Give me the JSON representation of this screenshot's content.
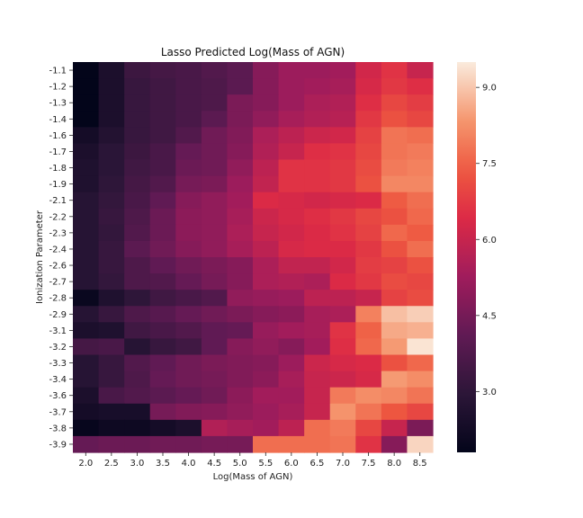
{
  "chart_data": {
    "type": "heatmap",
    "title": "Lasso Predicted Log(Mass of AGN)",
    "xlabel": "Log(Mass of AGN)",
    "ylabel": "Ionization Parameter",
    "x_categories": [
      "2.0",
      "2.5",
      "3.0",
      "3.5",
      "4.0",
      "4.5",
      "5.0",
      "5.5",
      "6.0",
      "6.5",
      "7.0",
      "7.5",
      "8.0",
      "8.5"
    ],
    "y_categories": [
      "-1.1",
      "-1.2",
      "-1.3",
      "-1.4",
      "-1.6",
      "-1.7",
      "-1.8",
      "-1.9",
      "-2.1",
      "-2.2",
      "-2.3",
      "-2.4",
      "-2.6",
      "-2.7",
      "-2.8",
      "-2.9",
      "-3.1",
      "-3.2",
      "-3.3",
      "-3.4",
      "-3.6",
      "-3.7",
      "-3.8",
      "-3.9"
    ],
    "values": [
      [
        1.8,
        2.5,
        3.3,
        3.5,
        3.6,
        3.8,
        4.0,
        4.8,
        5.2,
        5.2,
        5.3,
        6.2,
        6.6,
        6.0
      ],
      [
        1.8,
        2.5,
        3.2,
        3.4,
        3.6,
        3.7,
        4.0,
        4.8,
        5.2,
        5.3,
        5.4,
        6.3,
        6.7,
        6.5
      ],
      [
        1.8,
        2.5,
        3.2,
        3.4,
        3.6,
        3.7,
        4.6,
        4.8,
        5.2,
        5.5,
        5.6,
        6.5,
        7.0,
        6.8
      ],
      [
        1.8,
        2.5,
        3.2,
        3.4,
        3.6,
        4.0,
        4.6,
        5.0,
        5.4,
        5.6,
        5.7,
        6.7,
        7.2,
        7.0
      ],
      [
        2.3,
        2.7,
        3.2,
        3.4,
        3.8,
        4.4,
        4.7,
        5.5,
        5.8,
        6.1,
        6.2,
        6.9,
        7.8,
        7.7
      ],
      [
        2.5,
        2.9,
        3.3,
        3.6,
        4.2,
        4.4,
        4.8,
        5.6,
        6.0,
        6.5,
        6.6,
        7.0,
        7.8,
        7.9
      ],
      [
        2.6,
        2.9,
        3.4,
        3.6,
        4.3,
        4.4,
        5.0,
        5.8,
        6.6,
        6.6,
        6.7,
        7.1,
        7.9,
        8.0
      ],
      [
        2.6,
        3.0,
        3.5,
        3.8,
        4.5,
        4.6,
        5.2,
        5.9,
        6.6,
        6.6,
        6.7,
        7.2,
        8.1,
        8.1
      ],
      [
        2.8,
        3.1,
        3.6,
        4.1,
        4.8,
        5.0,
        5.3,
        6.4,
        6.3,
        6.2,
        6.3,
        6.4,
        7.4,
        7.7
      ],
      [
        2.8,
        3.2,
        3.7,
        4.3,
        4.9,
        5.0,
        5.4,
        6.1,
        6.3,
        6.5,
        6.7,
        7.0,
        7.2,
        7.6
      ],
      [
        2.8,
        3.1,
        3.8,
        4.3,
        4.9,
        5.0,
        5.5,
        6.0,
        6.2,
        6.4,
        6.6,
        6.9,
        7.6,
        7.4
      ],
      [
        2.8,
        3.2,
        4.0,
        4.4,
        4.8,
        5.0,
        5.4,
        5.8,
        6.3,
        6.4,
        6.4,
        6.7,
        7.2,
        7.7
      ],
      [
        2.8,
        3.2,
        3.7,
        4.1,
        4.4,
        4.6,
        4.8,
        5.5,
        5.9,
        5.9,
        6.2,
        6.8,
        6.9,
        7.2
      ],
      [
        2.8,
        3.1,
        3.7,
        3.8,
        4.2,
        4.5,
        4.8,
        5.5,
        5.6,
        5.5,
        6.4,
        6.7,
        7.1,
        7.0
      ],
      [
        2.0,
        2.6,
        3.0,
        3.4,
        3.6,
        3.8,
        5.0,
        5.1,
        5.2,
        5.8,
        5.8,
        6.0,
        6.9,
        7.1
      ],
      [
        2.8,
        3.2,
        3.7,
        3.9,
        4.2,
        4.4,
        4.6,
        4.8,
        4.9,
        5.4,
        5.5,
        8.0,
        8.9,
        9.1
      ],
      [
        2.5,
        2.6,
        3.4,
        3.6,
        3.8,
        4.1,
        4.2,
        5.1,
        5.3,
        5.4,
        6.6,
        7.5,
        8.6,
        8.7
      ],
      [
        3.5,
        3.6,
        2.8,
        3.2,
        3.4,
        4.1,
        4.8,
        5.0,
        4.8,
        5.3,
        6.5,
        7.6,
        8.4,
        9.4
      ],
      [
        2.8,
        3.2,
        3.8,
        4.1,
        4.4,
        4.6,
        4.7,
        4.8,
        5.2,
        6.1,
        6.3,
        6.4,
        7.2,
        7.6
      ],
      [
        2.8,
        3.2,
        3.7,
        4.2,
        4.4,
        4.5,
        4.7,
        4.9,
        5.4,
        6.0,
        6.1,
        6.3,
        8.4,
        8.2
      ],
      [
        2.5,
        3.6,
        3.8,
        4.0,
        4.2,
        4.4,
        4.9,
        5.3,
        5.3,
        6.0,
        7.9,
        8.2,
        8.1,
        7.8
      ],
      [
        2.3,
        2.4,
        2.4,
        4.5,
        4.7,
        4.8,
        5.0,
        5.2,
        5.4,
        6.0,
        8.3,
        7.8,
        7.3,
        7.0
      ],
      [
        1.9,
        2.1,
        2.1,
        2.3,
        2.5,
        5.6,
        5.4,
        5.3,
        5.8,
        7.7,
        7.9,
        7.0,
        6.0,
        4.6
      ],
      [
        4.2,
        4.3,
        4.3,
        4.4,
        4.4,
        4.5,
        4.5,
        7.7,
        7.7,
        7.7,
        7.8,
        6.6,
        4.8,
        9.2
      ]
    ],
    "colorbar": {
      "vmin": 1.8,
      "vmax": 9.5,
      "ticks": [
        "3.0",
        "4.5",
        "6.0",
        "7.5",
        "9.0"
      ],
      "colormap": "rocket"
    }
  }
}
